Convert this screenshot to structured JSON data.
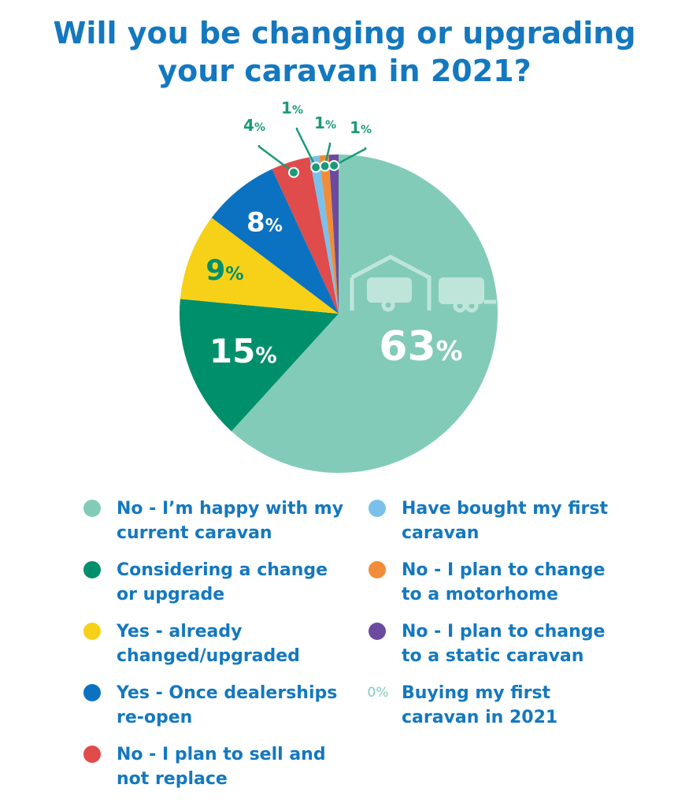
{
  "title_line1": "Will you be changing or upgrading",
  "title_line2": "your caravan in 2021?",
  "chart_data": {
    "type": "pie",
    "title": "Will you be changing or upgrading your caravan in 2021?",
    "slices": [
      {
        "label": "No - I’m happy with my current caravan",
        "value": 63,
        "display": "63%",
        "color": "#82cbb9"
      },
      {
        "label": "Considering a change or upgrade",
        "value": 15,
        "display": "15%",
        "color": "#008f6b"
      },
      {
        "label": "Yes - already changed/upgraded",
        "value": 9,
        "display": "9%",
        "color": "#f7d117"
      },
      {
        "label": "Yes - Once dealerships re-open",
        "value": 8,
        "display": "8%",
        "color": "#0b72c1"
      },
      {
        "label": "No - I plan to sell and not replace",
        "value": 4,
        "display": "4%",
        "color": "#e04b4b"
      },
      {
        "label": "Have bought my first caravan",
        "value": 1,
        "display": "1%",
        "color": "#79c1ea"
      },
      {
        "label": "No - I plan to change to a motorhome",
        "value": 1,
        "display": "1%",
        "color": "#f28c38"
      },
      {
        "label": "No - I plan to change to a static caravan",
        "value": 1,
        "display": "1%",
        "color": "#6b4aa0"
      },
      {
        "label": "Buying my first caravan in 2021",
        "value": 0,
        "display": "0%",
        "color": "#82cbb9"
      }
    ]
  },
  "legend_left": [
    {
      "line1": "No - I’m happy with my",
      "line2": "current caravan",
      "color": "#82cbb9"
    },
    {
      "line1": "Considering a change",
      "line2": "or upgrade",
      "color": "#008f6b"
    },
    {
      "line1": "Yes - already",
      "line2": "changed/upgraded",
      "color": "#f7d117"
    },
    {
      "line1": "Yes - Once dealerships",
      "line2": "re-open",
      "color": "#0b72c1"
    },
    {
      "line1": "No - I plan to sell and",
      "line2": "not replace",
      "color": "#e04b4b"
    }
  ],
  "legend_right": [
    {
      "line1": "Have bought my first",
      "line2": "caravan",
      "color": "#79c1ea"
    },
    {
      "line1": "No - I plan to change",
      "line2": "to a motorhome",
      "color": "#f28c38"
    },
    {
      "line1": "No - I plan to change",
      "line2": "to a static caravan",
      "color": "#6b4aa0"
    },
    {
      "line1": "Buying my first",
      "line2": "caravan in 2021",
      "color": "#82cbb9",
      "zero_label": "0%"
    }
  ],
  "icons": [
    "garage-caravan-icon",
    "caravan-icon"
  ]
}
